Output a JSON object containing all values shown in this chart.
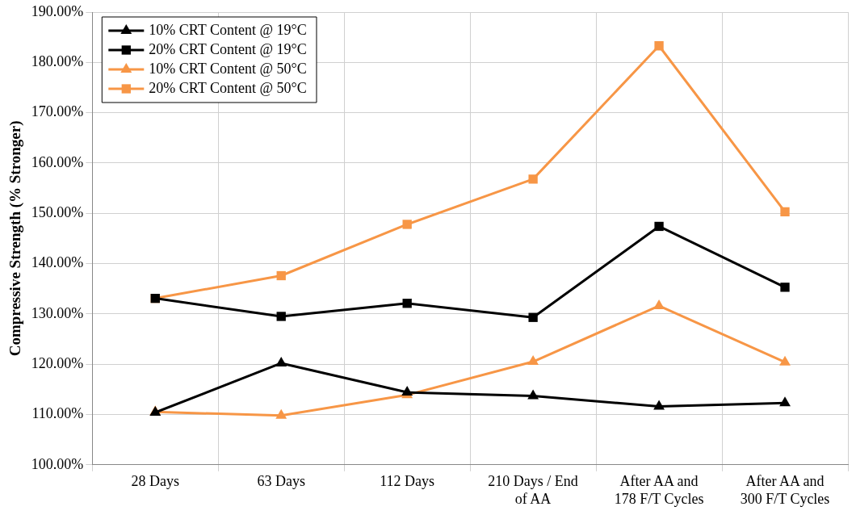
{
  "chart_data": {
    "type": "line",
    "ylabel": "Compressive Strength (% Stronger)",
    "categories": [
      "28 Days",
      "63 Days",
      "112 Days",
      "210 Days / End of AA",
      "After AA and 178 F/T Cycles",
      "After AA and 300 F/T Cycles"
    ],
    "series": [
      {
        "name": "10% CRT Content @ 19°C",
        "color": "#000000",
        "marker": "triangle",
        "values": [
          110.4,
          120.2,
          114.4,
          113.7,
          111.6,
          112.3
        ]
      },
      {
        "name": "20% CRT Content @ 19°C",
        "color": "#000000",
        "marker": "square",
        "values": [
          133.1,
          129.5,
          132.1,
          129.3,
          147.4,
          135.3
        ]
      },
      {
        "name": "10% CRT Content @ 50°C",
        "color": "#f79646",
        "marker": "triangle",
        "values": [
          110.5,
          109.8,
          113.9,
          120.5,
          131.6,
          120.4
        ]
      },
      {
        "name": "20% CRT Content @ 50°C",
        "color": "#f79646",
        "marker": "square",
        "values": [
          133.1,
          137.6,
          147.8,
          156.8,
          183.3,
          150.3
        ]
      }
    ],
    "ylim": [
      100,
      190
    ],
    "yticks": [
      {
        "value": 100,
        "label": "100.00%"
      },
      {
        "value": 110,
        "label": "110.00%"
      },
      {
        "value": 120,
        "label": "120.00%"
      },
      {
        "value": 130,
        "label": "130.00%"
      },
      {
        "value": 140,
        "label": "140.00%"
      },
      {
        "value": 150,
        "label": "150.00%"
      },
      {
        "value": 160,
        "label": "160.00%"
      },
      {
        "value": 170,
        "label": "170.00%"
      },
      {
        "value": 180,
        "label": "180.00%"
      },
      {
        "value": 190,
        "label": "190.00%"
      }
    ],
    "grid": true,
    "legend": "top left",
    "line_style": "solid"
  }
}
